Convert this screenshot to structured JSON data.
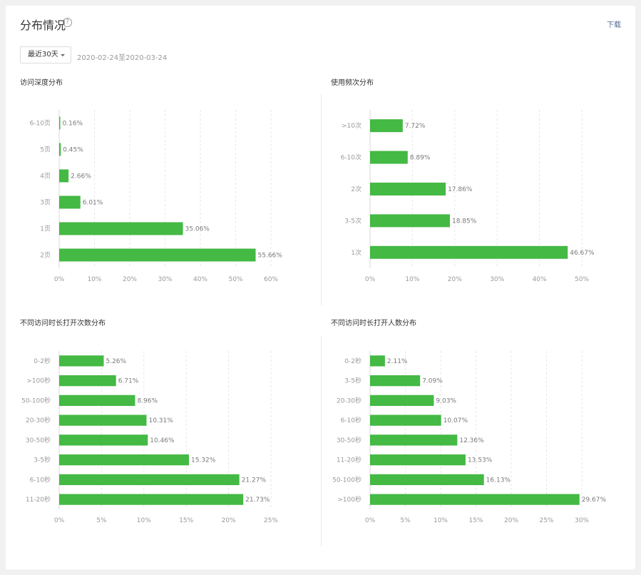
{
  "header": {
    "title": "分布情况",
    "help_icon": "?",
    "download_label": "下载"
  },
  "filter": {
    "range_label": "最近30天",
    "date_range": "2020-02-24至2020-03-24"
  },
  "colors": {
    "bar": "#44b944",
    "grid": "#e6e6e6",
    "axis": "#d9d9d9",
    "link": "#576b95"
  },
  "chart_data": [
    {
      "type": "bar",
      "orientation": "horizontal",
      "title": "访问深度分布",
      "categories": [
        "6-10页",
        "5页",
        "4页",
        "3页",
        "1页",
        "2页"
      ],
      "values": [
        0.16,
        0.45,
        2.66,
        6.01,
        35.06,
        55.66
      ],
      "value_labels": [
        "0.16%",
        "0.45%",
        "2.66%",
        "6.01%",
        "35.06%",
        "55.66%"
      ],
      "xlim": [
        0,
        60
      ],
      "xticks": [
        0,
        10,
        20,
        30,
        40,
        50,
        60
      ],
      "xtick_labels": [
        "0%",
        "10%",
        "20%",
        "30%",
        "40%",
        "50%",
        "60%"
      ],
      "grid": true
    },
    {
      "type": "bar",
      "orientation": "horizontal",
      "title": "使用频次分布",
      "categories": [
        ">10次",
        "6-10次",
        "2次",
        "3-5次",
        "1次"
      ],
      "values": [
        7.72,
        8.89,
        17.86,
        18.85,
        46.67
      ],
      "value_labels": [
        "7.72%",
        "8.89%",
        "17.86%",
        "18.85%",
        "46.67%"
      ],
      "xlim": [
        0,
        50
      ],
      "xticks": [
        0,
        10,
        20,
        30,
        40,
        50
      ],
      "xtick_labels": [
        "0%",
        "10%",
        "20%",
        "30%",
        "40%",
        "50%"
      ],
      "grid": true
    },
    {
      "type": "bar",
      "orientation": "horizontal",
      "title": "不同访问时长打开次数分布",
      "categories": [
        "0-2秒",
        ">100秒",
        "50-100秒",
        "20-30秒",
        "30-50秒",
        "3-5秒",
        "6-10秒",
        "11-20秒"
      ],
      "values": [
        5.26,
        6.71,
        8.96,
        10.31,
        10.46,
        15.32,
        21.27,
        21.73
      ],
      "value_labels": [
        "5.26%",
        "6.71%",
        "8.96%",
        "10.31%",
        "10.46%",
        "15.32%",
        "21.27%",
        "21.73%"
      ],
      "xlim": [
        0,
        25
      ],
      "xticks": [
        0,
        5,
        10,
        15,
        20,
        25
      ],
      "xtick_labels": [
        "0%",
        "5%",
        "10%",
        "15%",
        "20%",
        "25%"
      ],
      "grid": true
    },
    {
      "type": "bar",
      "orientation": "horizontal",
      "title": "不同访问时长打开人数分布",
      "categories": [
        "0-2秒",
        "3-5秒",
        "20-30秒",
        "6-10秒",
        "30-50秒",
        "11-20秒",
        "50-100秒",
        ">100秒"
      ],
      "values": [
        2.11,
        7.09,
        9.03,
        10.07,
        12.36,
        13.53,
        16.13,
        29.67
      ],
      "value_labels": [
        "2.11%",
        "7.09%",
        "9.03%",
        "10.07%",
        "12.36%",
        "13.53%",
        "16.13%",
        "29.67%"
      ],
      "xlim": [
        0,
        30
      ],
      "xticks": [
        0,
        5,
        10,
        15,
        20,
        25,
        30
      ],
      "xtick_labels": [
        "0%",
        "5%",
        "10%",
        "15%",
        "20%",
        "25%",
        "30%"
      ],
      "grid": true
    }
  ]
}
